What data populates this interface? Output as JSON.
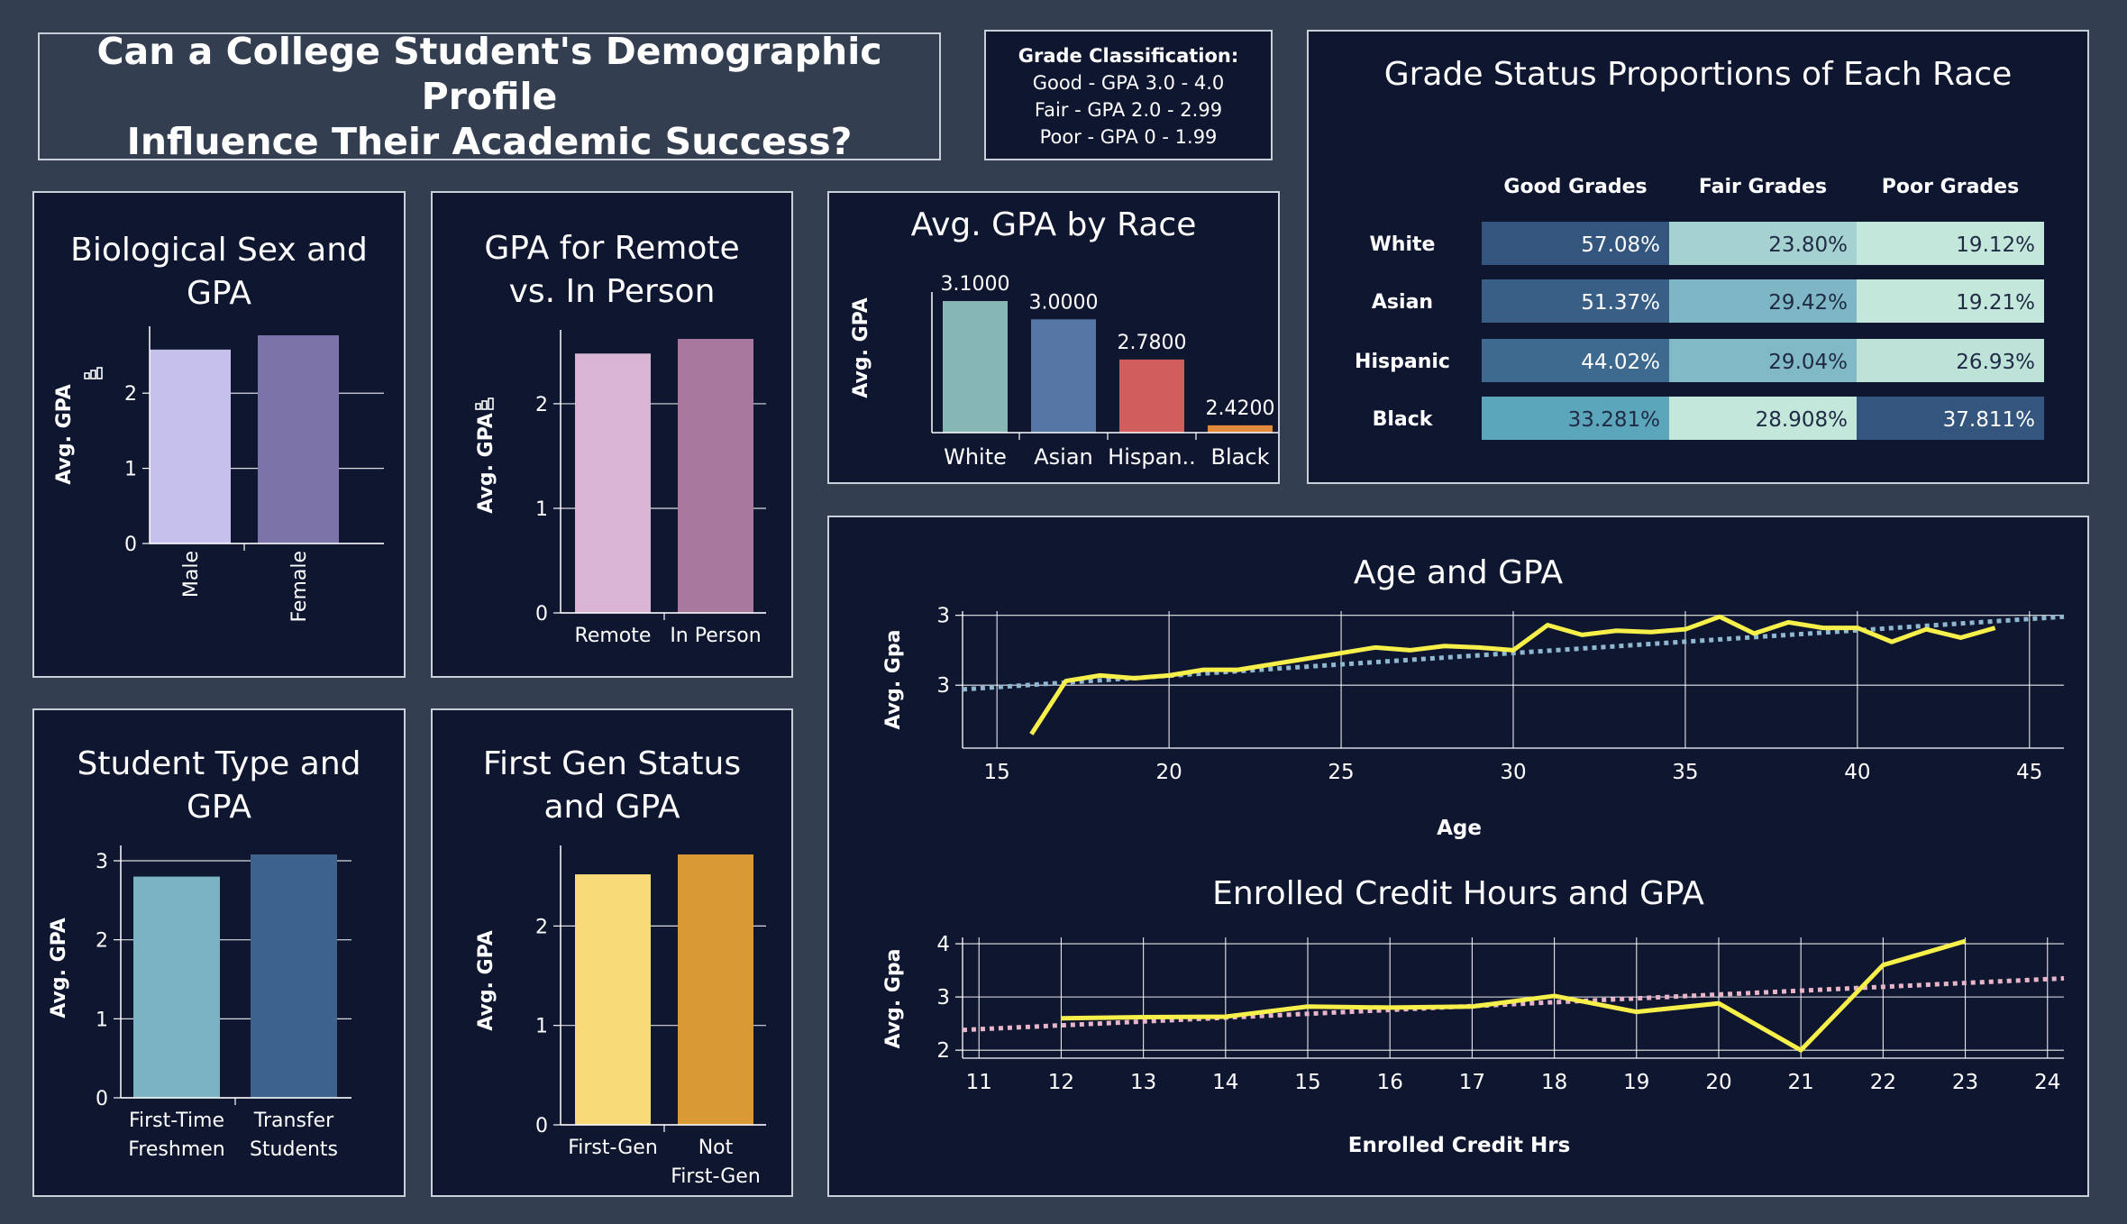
{
  "dashboard": {
    "title_line1": "Can a College Student's Demographic Profile",
    "title_line2": "Influence Their Academic Success?",
    "grade_classification": {
      "heading": "Grade Classification:",
      "lines": [
        "Good - GPA 3.0 - 4.0",
        "Fair - GPA 2.0 - 2.99",
        "Poor - GPA 0 - 1.99"
      ]
    }
  },
  "colors": {
    "background": "#333e50",
    "panel": "#0f1630",
    "trend_line": "#f7ef4a"
  },
  "chart_data": [
    {
      "id": "sex",
      "type": "bar",
      "title_line1": "Biological Sex and",
      "title_line2": "GPA",
      "ylabel": "Avg. GPA",
      "categories": [
        "Male",
        "Female"
      ],
      "values": [
        2.58,
        2.77
      ],
      "colors": [
        "#c6c1ec",
        "#7c74a8"
      ],
      "ylim": [
        0,
        2.77
      ],
      "yticks": [
        0,
        1,
        2
      ],
      "xlabel_rotated": true
    },
    {
      "id": "remote",
      "type": "bar",
      "title_line1": "GPA for Remote",
      "title_line2": "vs. In Person",
      "ylabel": "Avg. GPA",
      "categories": [
        "Remote",
        "In Person"
      ],
      "values": [
        2.48,
        2.62
      ],
      "colors": [
        "#d9b4d4",
        "#a9789f"
      ],
      "ylim": [
        0,
        2.62
      ],
      "yticks": [
        0,
        1,
        2
      ]
    },
    {
      "id": "studenttype",
      "type": "bar",
      "title_line1": "Student Type and",
      "title_line2": "GPA",
      "ylabel": "Avg. GPA",
      "categories": [
        [
          "First-Time",
          "Freshmen"
        ],
        [
          "Transfer",
          "Students"
        ]
      ],
      "values": [
        2.8,
        3.08
      ],
      "colors": [
        "#7bb3c2",
        "#3d638c"
      ],
      "ylim": [
        0,
        3.08
      ],
      "yticks": [
        0,
        1,
        2,
        3
      ]
    },
    {
      "id": "firstgen",
      "type": "bar",
      "title_line1": "First Gen Status",
      "title_line2": "and GPA",
      "ylabel": "Avg. GPA",
      "categories": [
        [
          "First-Gen"
        ],
        [
          "Not",
          "First-Gen"
        ]
      ],
      "values": [
        2.52,
        2.72
      ],
      "colors": [
        "#f8da78",
        "#d99a35"
      ],
      "ylim": [
        0,
        2.72
      ],
      "yticks": [
        0,
        1,
        2
      ]
    },
    {
      "id": "race",
      "type": "bar",
      "title": "Avg. GPA by Race",
      "ylabel": "Avg. GPA",
      "categories": [
        "White",
        "Asian",
        "Hispan..",
        "Black"
      ],
      "values": [
        3.1,
        3.0,
        2.78,
        2.42
      ],
      "labels": [
        "3.1000",
        "3.0000",
        "2.7800",
        "2.4200"
      ],
      "colors": [
        "#86b7b4",
        "#5677a6",
        "#d15e5c",
        "#e08a3c"
      ],
      "ylim": [
        2.38,
        3.1
      ]
    },
    {
      "id": "race_heatmap",
      "type": "table",
      "title": "Grade Status Proportions of Each Race",
      "columns": [
        "Good Grades",
        "Fair Grades",
        "Poor Grades"
      ],
      "rows": [
        {
          "race": "White",
          "values": [
            "57.08%",
            "23.80%",
            "19.12%"
          ],
          "colors": [
            "#34557e",
            "#a6d1d1",
            "#c3e7da"
          ]
        },
        {
          "race": "Asian",
          "values": [
            "51.37%",
            "29.42%",
            "19.21%"
          ],
          "colors": [
            "#3a5f87",
            "#7fb6c5",
            "#c3e7da"
          ]
        },
        {
          "race": "Hispanic",
          "values": [
            "44.02%",
            "29.04%",
            "26.93%"
          ],
          "colors": [
            "#3f6a90",
            "#82b9c6",
            "#bde3d8"
          ]
        },
        {
          "race": "Black",
          "values": [
            "33.281%",
            "28.908%",
            "37.811%"
          ],
          "colors": [
            "#5ca6bc",
            "#c3e7da",
            "#34557e"
          ]
        }
      ]
    },
    {
      "id": "age",
      "type": "line",
      "title": "Age and GPA",
      "xlabel": "Age",
      "ylabel": "Avg. Gpa",
      "x": [
        16,
        17,
        18,
        19,
        20,
        21,
        22,
        23,
        24,
        25,
        26,
        27,
        28,
        29,
        30,
        31,
        32,
        33,
        34,
        35,
        36,
        37,
        38,
        39,
        40,
        41,
        42,
        43,
        44
      ],
      "y": [
        2.4,
        2.78,
        2.82,
        2.8,
        2.82,
        2.86,
        2.86,
        2.9,
        2.94,
        2.98,
        3.02,
        3.0,
        3.03,
        3.02,
        3.0,
        3.18,
        3.11,
        3.14,
        3.13,
        3.15,
        3.24,
        3.12,
        3.2,
        3.16,
        3.16,
        3.06,
        3.15,
        3.09,
        3.16
      ],
      "trend": {
        "x": [
          14,
          46
        ],
        "y": [
          2.72,
          3.24
        ],
        "color": "#8fb8d0"
      },
      "xlim": [
        14,
        46
      ],
      "xticks": [
        15,
        20,
        25,
        30,
        35,
        40,
        45
      ],
      "ylim": [
        2.3,
        3.28
      ],
      "ytick_values": [
        2.75,
        3.25
      ],
      "ytick_labels": [
        "3",
        "3"
      ]
    },
    {
      "id": "credit",
      "type": "line",
      "title": "Enrolled Credit Hours and GPA",
      "xlabel": "Enrolled Credit Hrs",
      "ylabel": "Avg. Gpa",
      "x": [
        12,
        13,
        14,
        15,
        16,
        17,
        18,
        19,
        20,
        21,
        22,
        23
      ],
      "y": [
        2.6,
        2.62,
        2.63,
        2.82,
        2.8,
        2.82,
        3.02,
        2.72,
        2.88,
        2.0,
        3.6,
        4.05
      ],
      "trend": {
        "x": [
          10.8,
          24.2
        ],
        "y": [
          2.38,
          3.35
        ],
        "color": "#e8b4c8"
      },
      "xlim": [
        10.8,
        24.2
      ],
      "xticks": [
        11,
        12,
        13,
        14,
        15,
        16,
        17,
        18,
        19,
        20,
        21,
        22,
        23,
        24
      ],
      "ylim": [
        1.85,
        4.12
      ],
      "yticks": [
        2,
        3,
        4
      ]
    }
  ]
}
